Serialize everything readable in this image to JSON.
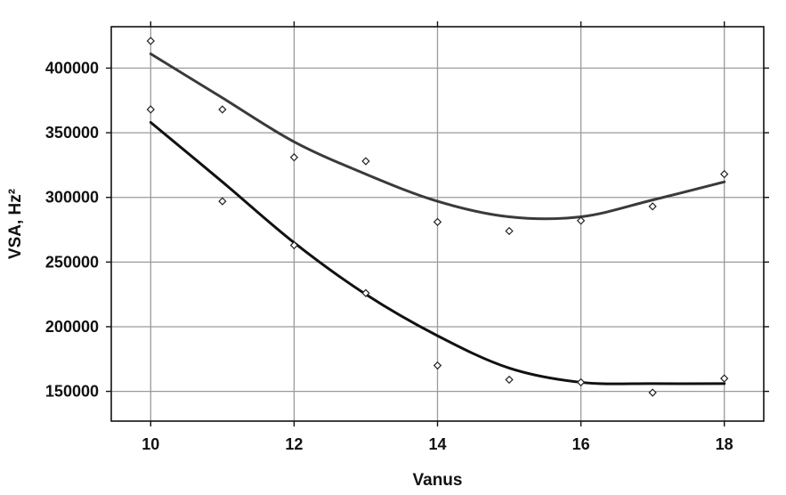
{
  "chart_data": {
    "type": "scatter",
    "xlabel": "Vanus",
    "ylabel": "VSA, Hz²",
    "xlim": [
      9.45,
      18.55
    ],
    "ylim": [
      127000,
      432000
    ],
    "x_ticks": [
      10,
      12,
      14,
      16,
      18
    ],
    "y_ticks": [
      150000,
      200000,
      250000,
      300000,
      350000,
      400000
    ],
    "x_tick_labels": [
      "10",
      "12",
      "14",
      "16",
      "18"
    ],
    "y_tick_labels": [
      "150000",
      "200000",
      "250000",
      "300000",
      "350000",
      "400000"
    ],
    "grid": true,
    "legend": "none",
    "series": [
      {
        "kind": "points",
        "x": [
          10,
          11,
          12,
          13,
          14,
          15,
          16,
          17,
          18
        ],
        "y": [
          421000,
          368000,
          331000,
          328000,
          281000,
          274000,
          282000,
          293000,
          318000
        ]
      },
      {
        "kind": "points",
        "x": [
          10,
          11,
          12,
          13,
          14,
          15,
          16,
          17,
          18
        ],
        "y": [
          368000,
          297000,
          263000,
          226000,
          170000,
          159000,
          157000,
          149000,
          160000
        ]
      },
      {
        "kind": "line",
        "color": "#3a3a3a",
        "x": [
          10,
          11,
          12,
          13,
          14,
          15,
          16,
          17,
          18
        ],
        "y": [
          411000,
          377000,
          343000,
          318000,
          297000,
          285000,
          285000,
          298000,
          312000
        ]
      },
      {
        "kind": "line",
        "color": "#111111",
        "x": [
          10,
          11,
          12,
          13,
          14,
          15,
          16,
          17,
          18
        ],
        "y": [
          358000,
          312000,
          265000,
          225000,
          193000,
          168000,
          157000,
          156000,
          156000
        ]
      }
    ]
  }
}
